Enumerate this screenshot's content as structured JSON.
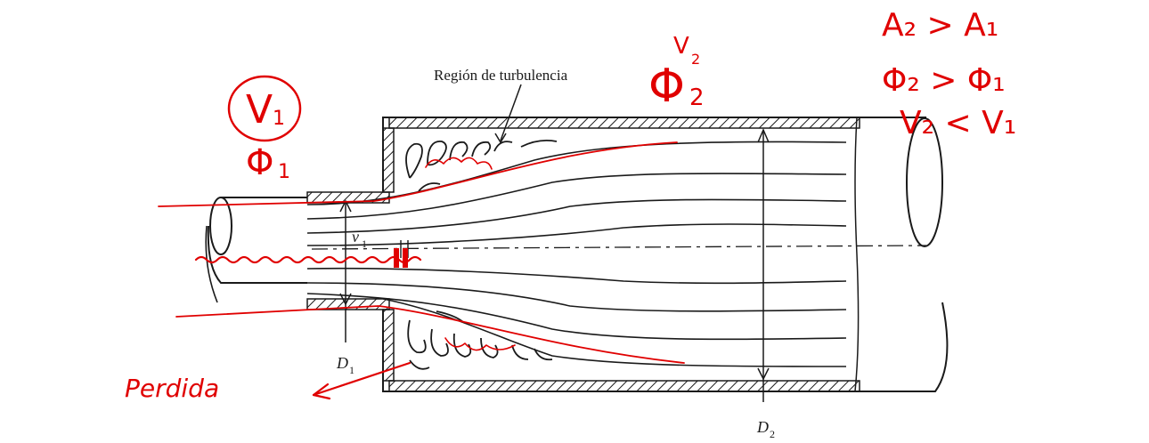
{
  "labels": {
    "turbulence_region": "Región de turbulencia",
    "v1": "v",
    "v1_sub": "1",
    "d1": "D",
    "d1_sub": "1",
    "d2": "D",
    "d2_sub": "2"
  },
  "annotations": {
    "v1_circled": "V",
    "v1_circled_sub": "1",
    "phi1": "Φ",
    "phi1_sub": "1",
    "phi2_sup": "V",
    "phi2_sup_sub": "2",
    "phi2": "Φ",
    "phi2_sub": "2",
    "area_relation": "A₂ > A₁",
    "phi_relation": "Φ₂ > Φ₁",
    "velocity_relation": "V₂ < V₁",
    "loss": "Perdida"
  },
  "colors": {
    "ink": "#1a1a1a",
    "annotation_red": "#e00000",
    "background": "#ffffff"
  }
}
